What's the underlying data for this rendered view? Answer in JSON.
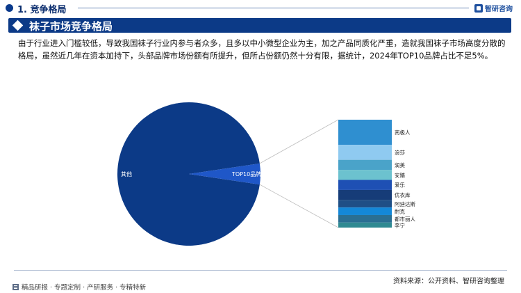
{
  "header": {
    "section_number_title": "1. 竞争格局",
    "brand": "智研咨询"
  },
  "section": {
    "title": "袜子市场竞争格局"
  },
  "intro_text": "由于行业进入门槛较低，导致我国袜子行业内参与者众多，且多以中小微型企业为主，加之产品同质化严重，造就我国袜子市场高度分散的格局，虽然近几年在资本加持下，头部品牌市场份额有所提升，但所占份额仍然十分有限，据统计，2024年TOP10品牌占比不足5%。",
  "chart_data": {
    "type": "bar-of-pie",
    "title": "",
    "pie": {
      "slices": [
        {
          "label": "其他",
          "value": 95.3,
          "color": "#0c3a87"
        },
        {
          "label": "TOP10品牌",
          "value": 4.7,
          "color": "#1f57c8"
        }
      ]
    },
    "stacked_bar": {
      "items": [
        {
          "label": "南极人",
          "value": 1.0,
          "color": "#2f8fd0"
        },
        {
          "label": "浪莎",
          "value": 0.6,
          "color": "#8fcaf0"
        },
        {
          "label": "润美",
          "value": 0.4,
          "color": "#4aa3c9"
        },
        {
          "label": "安踏",
          "value": 0.4,
          "color": "#6cc2cf"
        },
        {
          "label": "爱乐",
          "value": 0.4,
          "color": "#1e50b4"
        },
        {
          "label": "优衣库",
          "value": 0.4,
          "color": "#163c78"
        },
        {
          "label": "阿迪达斯",
          "value": 0.3,
          "color": "#1f4f86"
        },
        {
          "label": "耐克",
          "value": 0.3,
          "color": "#1488d8"
        },
        {
          "label": "都市丽人",
          "value": 0.3,
          "color": "#2a6f93"
        },
        {
          "label": "李宁",
          "value": 0.2,
          "color": "#2f8a92"
        }
      ]
    }
  },
  "footer": {
    "source": "资料来源：公开资料、智研咨询整理",
    "services": "精品研报 · 专题定制 · 产研服务 · 专精特新"
  }
}
